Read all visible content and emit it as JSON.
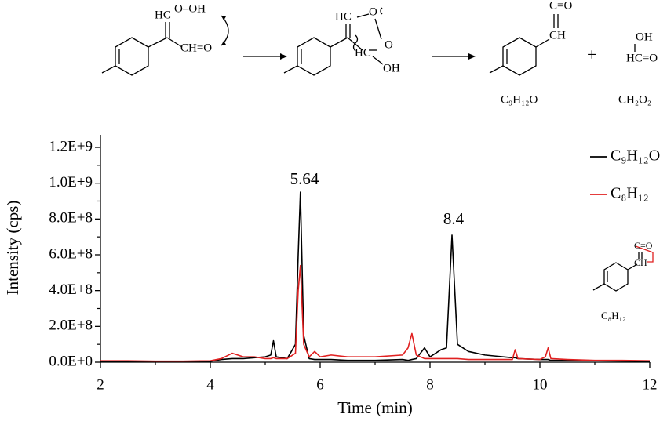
{
  "scheme": {
    "labels": [
      "HC",
      "O–OH",
      "CH=O",
      "HC",
      "O",
      "O",
      "HC",
      "OH",
      "C=O",
      "CH",
      "+",
      "OH",
      "HC=O",
      "C₉H₁₂O",
      "CH₂O₂",
      "C=O",
      "CH",
      "C₈H₁₂"
    ]
  },
  "chart_data": {
    "type": "line",
    "x_label": "Time (min)",
    "y_label": "Intensity (cps)",
    "annotations": [
      "5.64",
      "8.4"
    ],
    "x": [
      2,
      2.5,
      3,
      3.5,
      4,
      4.2,
      4.4,
      4.6,
      4.8,
      5.0,
      5.1,
      5.15,
      5.2,
      5.4,
      5.55,
      5.6,
      5.64,
      5.7,
      5.8,
      5.9,
      6.0,
      6.2,
      6.5,
      7.0,
      7.5,
      7.6,
      7.67,
      7.75,
      7.9,
      8.0,
      8.2,
      8.3,
      8.4,
      8.5,
      8.7,
      9.0,
      9.5,
      9.55,
      9.6,
      10.0,
      10.1,
      10.15,
      10.2,
      10.5,
      11,
      11.5,
      12
    ],
    "series": [
      {
        "name": "C₉H₁₂O",
        "color": "#000000",
        "values": [
          5000000,
          5000000,
          4000000,
          4000000,
          5000000,
          15000000,
          20000000,
          20000000,
          25000000,
          30000000,
          40000000,
          120000000,
          30000000,
          20000000,
          100000000,
          600000000,
          950000000,
          150000000,
          20000000,
          15000000,
          15000000,
          15000000,
          10000000,
          10000000,
          15000000,
          10000000,
          15000000,
          20000000,
          80000000,
          30000000,
          70000000,
          80000000,
          710000000,
          100000000,
          60000000,
          40000000,
          25000000,
          25000000,
          20000000,
          15000000,
          15000000,
          15000000,
          10000000,
          10000000,
          8000000,
          6000000,
          5000000
        ]
      },
      {
        "name": "C₈H₁₂",
        "color": "#e02020",
        "values": [
          8000000,
          8000000,
          6000000,
          6000000,
          8000000,
          20000000,
          50000000,
          30000000,
          30000000,
          20000000,
          20000000,
          25000000,
          20000000,
          20000000,
          50000000,
          400000000,
          540000000,
          100000000,
          30000000,
          60000000,
          30000000,
          40000000,
          30000000,
          30000000,
          40000000,
          80000000,
          160000000,
          40000000,
          20000000,
          20000000,
          20000000,
          20000000,
          20000000,
          20000000,
          15000000,
          15000000,
          15000000,
          70000000,
          20000000,
          15000000,
          30000000,
          80000000,
          20000000,
          15000000,
          10000000,
          10000000,
          8000000
        ]
      }
    ],
    "xlim": [
      2,
      12
    ],
    "xticks": [
      2,
      4,
      6,
      8,
      10,
      12
    ],
    "ylim": [
      0,
      1270000000
    ],
    "yticks": [
      {
        "value": 0,
        "label": "0.0E+0"
      },
      {
        "value": 200000000,
        "label": "2.0E+8"
      },
      {
        "value": 400000000,
        "label": "4.0E+8"
      },
      {
        "value": 600000000,
        "label": "6.0E+8"
      },
      {
        "value": 800000000,
        "label": "8.0E+8"
      },
      {
        "value": 1000000000,
        "label": "1.0E+9"
      },
      {
        "value": 1200000000,
        "label": "1.2E+9"
      }
    ],
    "legend": "upper right"
  }
}
